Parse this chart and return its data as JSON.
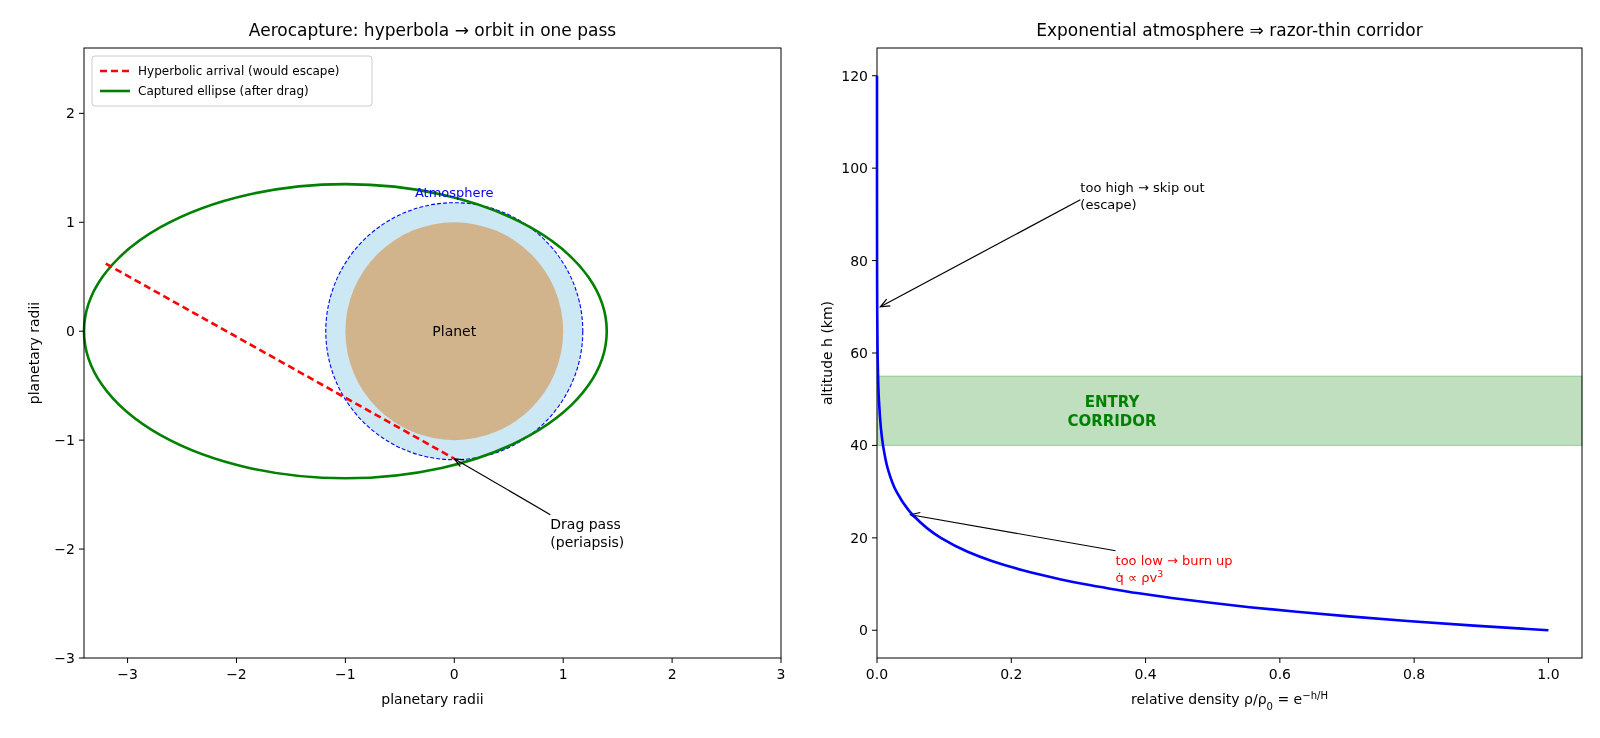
{
  "chart_data": [
    {
      "type": "line",
      "title": "Aerocapture: hyperbola → orbit in one pass",
      "xlabel": "planetary radii",
      "ylabel": "planetary radii",
      "xlim": [
        -3.4,
        3
      ],
      "ylim": [
        -3,
        2.6
      ],
      "xticks": [
        {
          "value": -3,
          "label": "−3"
        },
        {
          "value": -2,
          "label": "−2"
        },
        {
          "value": -1,
          "label": "−1"
        },
        0,
        1,
        2,
        3
      ],
      "yticks": [
        {
          "value": -3,
          "label": "−3"
        },
        {
          "value": -2,
          "label": "−2"
        },
        {
          "value": -1,
          "label": "−1"
        },
        0,
        1,
        2
      ],
      "grid": false,
      "legend": "top left",
      "series": [
        {
          "name": "Hyperbolic arrival (would escape)",
          "color": "#ff0000",
          "line_style": "dashed",
          "x": [
            -3.2,
            0
          ],
          "values": [
            0.62,
            -1.17
          ]
        }
      ],
      "annotations": [
        "Planet",
        "Atmosphere",
        {
          "text": "Drag pass\n(periapsis)",
          "x": 0,
          "y": -1.17
        },
        "Captured ellipse (after drag)"
      ]
    },
    {
      "type": "line",
      "title": "Exponential atmosphere ⇒ razor-thin corridor",
      "xlabel": "relative density ρ/ρ$_{0}$ = e$^{−h/H}$",
      "ylabel": "altitude h (km)",
      "xlim": [
        0,
        1.05
      ],
      "ylim": [
        -6,
        126
      ],
      "xticks": [
        {
          "value": 0,
          "label": "0.0"
        },
        0.2,
        0.4,
        0.6,
        0.8,
        {
          "value": 1,
          "label": "1.0"
        }
      ],
      "yticks": [
        0,
        20,
        40,
        60,
        80,
        100,
        120
      ],
      "grid": false,
      "series": [
        {
          "color": "#0000ff",
          "x": [
            0,
            0,
            0.0001,
            0.0003,
            0.0009,
            0.0028,
            0.009,
            0.016,
            0.029,
            0.053,
            0.095,
            0.135,
            0.171,
            0.217,
            0.244,
            0.274,
            0.308,
            0.347,
            0.39,
            0.439,
            0.494,
            0.555,
            0.625,
            0.703,
            0.79,
            0.889,
            1
          ],
          "values": [
            120,
            100,
            80,
            70,
            60,
            50,
            40,
            35,
            30,
            25,
            20,
            17,
            15,
            13,
            12,
            11,
            10,
            9,
            8,
            7,
            6,
            5,
            4,
            3,
            2,
            1,
            0
          ]
        }
      ],
      "bands": [
        {
          "axis": "y",
          "from": 40,
          "to": 55,
          "label": "ENTRY\nCORRIDOR",
          "color": "#008000"
        }
      ],
      "annotations": [
        {
          "text": "too high → skip out\n(escape)",
          "x": 0.005,
          "y": 70
        },
        {
          "text": "too low → burn up\nq̇ ∝ ρv$^{3}$",
          "x": 0.05,
          "y": 25
        }
      ]
    }
  ]
}
